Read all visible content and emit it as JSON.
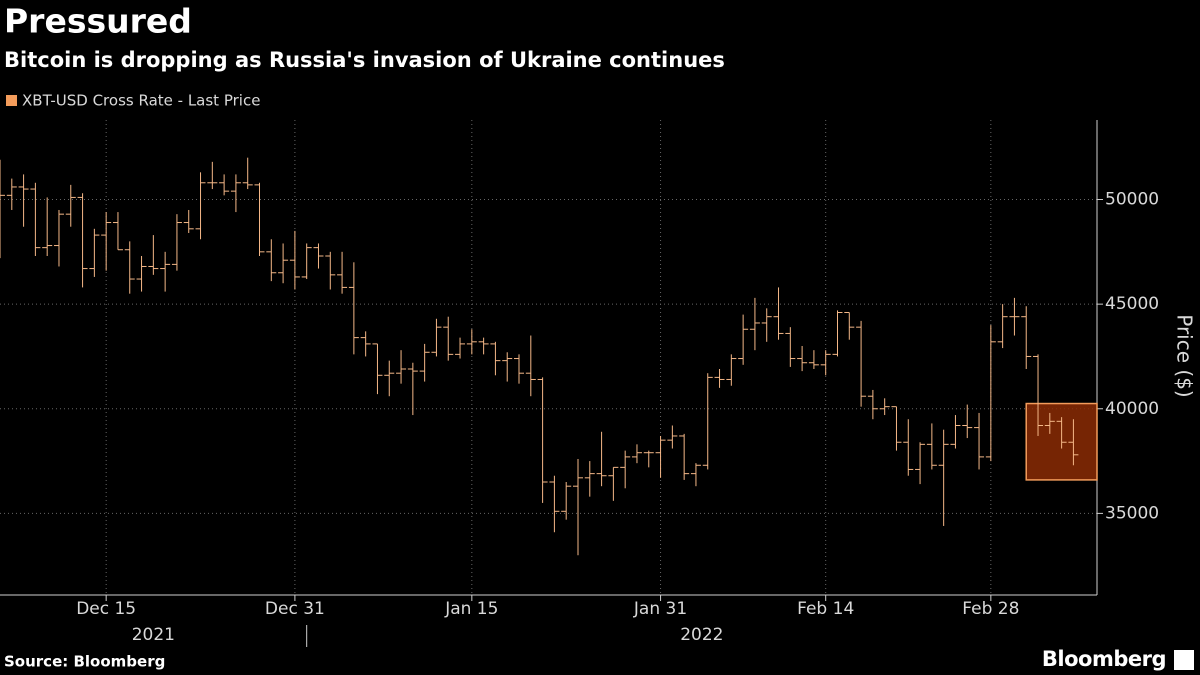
{
  "chart_data": {
    "type": "ohlc",
    "title": "Pressured",
    "subtitle": "Bitcoin is dropping as Russia's invasion of Ukraine continues",
    "y_label": "Price ($)",
    "source": "Source: Bloomberg",
    "brand": "Bloomberg",
    "xlim": [
      "2021-12-06",
      "2022-03-09"
    ],
    "xticks": [
      {
        "value": "2021-12-15",
        "label": "Dec 15"
      },
      {
        "value": "2021-12-31",
        "label": "Dec 31"
      },
      {
        "value": "2022-01-15",
        "label": "Jan 15"
      },
      {
        "value": "2022-01-31",
        "label": "Jan 31"
      },
      {
        "value": "2022-02-14",
        "label": "Feb 14"
      },
      {
        "value": "2022-02-28",
        "label": "Feb 28"
      }
    ],
    "x_year_labels": [
      "2021",
      "2022"
    ],
    "ylim": [
      31100,
      53800
    ],
    "yticks": [
      35000,
      40000,
      45000,
      50000
    ],
    "grid": true,
    "x": [
      "2021-12-06",
      "2021-12-07",
      "2021-12-08",
      "2021-12-09",
      "2021-12-10",
      "2021-12-11",
      "2021-12-12",
      "2021-12-13",
      "2021-12-14",
      "2021-12-15",
      "2021-12-16",
      "2021-12-17",
      "2021-12-18",
      "2021-12-19",
      "2021-12-20",
      "2021-12-21",
      "2021-12-22",
      "2021-12-23",
      "2021-12-24",
      "2021-12-25",
      "2021-12-26",
      "2021-12-27",
      "2021-12-28",
      "2021-12-29",
      "2021-12-30",
      "2021-12-31",
      "2022-01-01",
      "2022-01-02",
      "2022-01-03",
      "2022-01-04",
      "2022-01-05",
      "2022-01-06",
      "2022-01-07",
      "2022-01-08",
      "2022-01-09",
      "2022-01-10",
      "2022-01-11",
      "2022-01-12",
      "2022-01-13",
      "2022-01-14",
      "2022-01-15",
      "2022-01-16",
      "2022-01-17",
      "2022-01-18",
      "2022-01-19",
      "2022-01-20",
      "2022-01-21",
      "2022-01-22",
      "2022-01-23",
      "2022-01-24",
      "2022-01-25",
      "2022-01-26",
      "2022-01-27",
      "2022-01-28",
      "2022-01-29",
      "2022-01-30",
      "2022-01-31",
      "2022-02-01",
      "2022-02-02",
      "2022-02-03",
      "2022-02-04",
      "2022-02-05",
      "2022-02-06",
      "2022-02-07",
      "2022-02-08",
      "2022-02-09",
      "2022-02-10",
      "2022-02-11",
      "2022-02-12",
      "2022-02-13",
      "2022-02-14",
      "2022-02-15",
      "2022-02-16",
      "2022-02-17",
      "2022-02-18",
      "2022-02-19",
      "2022-02-20",
      "2022-02-21",
      "2022-02-22",
      "2022-02-23",
      "2022-02-24",
      "2022-02-25",
      "2022-02-26",
      "2022-02-27",
      "2022-02-28",
      "2022-03-01",
      "2022-03-02",
      "2022-03-03",
      "2022-03-04",
      "2022-03-05",
      "2022-03-06",
      "2022-03-07"
    ],
    "series": [
      {
        "name": "XBT-USD Cross Rate - Last Price",
        "color": "#f5b888",
        "open": [
          49400,
          50200,
          50600,
          50500,
          47700,
          47800,
          49300,
          50100,
          46700,
          48300,
          48900,
          47600,
          46200,
          46800,
          46700,
          46900,
          48900,
          48600,
          50800,
          50800,
          50400,
          50800,
          50700,
          47500,
          46500,
          47100,
          46300,
          47700,
          47300,
          46400,
          45800,
          43400,
          43100,
          41600,
          41700,
          41900,
          41800,
          42700,
          43900,
          42600,
          43100,
          43200,
          43100,
          42300,
          42400,
          41700,
          41400,
          36500,
          35100,
          36300,
          36700,
          36900,
          36800,
          37200,
          37700,
          37900,
          37900,
          38500,
          38700,
          36900,
          37300,
          41500,
          41400,
          42400,
          43800,
          44100,
          44400,
          43600,
          42400,
          42200,
          42100,
          42600,
          44600,
          43900,
          40600,
          40000,
          40100,
          38400,
          37100,
          38300,
          37300,
          38300,
          39200,
          39100,
          37700,
          43200,
          44400,
          44400,
          42500,
          39200,
          39400,
          38400
        ],
        "high": [
          51900,
          51000,
          51200,
          50800,
          50100,
          49500,
          50700,
          50300,
          48600,
          49400,
          49400,
          48000,
          47300,
          48300,
          47500,
          49300,
          49500,
          51300,
          51800,
          51200,
          51200,
          52000,
          50800,
          48100,
          47900,
          48500,
          47900,
          47900,
          47500,
          47500,
          47000,
          43700,
          43100,
          42300,
          42800,
          42200,
          43100,
          44300,
          44400,
          43400,
          43800,
          43400,
          43200,
          42700,
          42600,
          43500,
          41500,
          36800,
          36500,
          37600,
          37500,
          38900,
          37200,
          38000,
          38300,
          38000,
          38700,
          39200,
          38800,
          37400,
          41700,
          41900,
          42600,
          44500,
          45300,
          44800,
          45800,
          43900,
          43000,
          42800,
          42800,
          44700,
          44600,
          44200,
          40900,
          40500,
          40100,
          39500,
          38400,
          39300,
          39000,
          39700,
          40200,
          39800,
          44000,
          45000,
          45300,
          44900,
          42600,
          39800,
          39600,
          39500
        ],
        "low": [
          47200,
          49500,
          48700,
          47300,
          47300,
          46800,
          48700,
          45800,
          46300,
          46600,
          47600,
          45500,
          45600,
          46400,
          45600,
          46600,
          48400,
          48100,
          50500,
          50200,
          49400,
          50500,
          47300,
          46100,
          46000,
          45700,
          46200,
          46700,
          45700,
          45500,
          42600,
          42500,
          40700,
          40600,
          41200,
          39700,
          41300,
          42500,
          42300,
          42400,
          42600,
          42600,
          41600,
          41300,
          41200,
          40600,
          35500,
          34100,
          34700,
          33000,
          35800,
          36300,
          35600,
          36200,
          37400,
          37200,
          36700,
          38100,
          36600,
          36300,
          37100,
          41000,
          41100,
          42100,
          42800,
          43200,
          43300,
          42000,
          41800,
          41900,
          41600,
          42500,
          43300,
          40100,
          39500,
          39700,
          38000,
          36800,
          36400,
          37100,
          34400,
          38100,
          38600,
          37100,
          37500,
          42900,
          43500,
          41900,
          38700,
          38800,
          38100,
          37300
        ],
        "close": [
          50200,
          50600,
          50500,
          47700,
          47800,
          49300,
          50100,
          46700,
          48300,
          48900,
          47600,
          46200,
          46800,
          46700,
          46900,
          48900,
          48600,
          50800,
          50800,
          50400,
          50800,
          50700,
          47500,
          46500,
          47100,
          46300,
          47700,
          47300,
          46400,
          45800,
          43400,
          43100,
          41600,
          41700,
          41900,
          41800,
          42700,
          43900,
          42600,
          43100,
          43200,
          43100,
          42300,
          42400,
          41700,
          41400,
          36500,
          35100,
          36300,
          36700,
          36900,
          36800,
          37200,
          37700,
          37900,
          37900,
          38500,
          38700,
          36900,
          37300,
          41500,
          41400,
          42400,
          43800,
          44100,
          44400,
          43600,
          42400,
          42200,
          42100,
          42600,
          44600,
          43900,
          40600,
          40000,
          40100,
          38400,
          37100,
          38300,
          37300,
          38300,
          39200,
          39100,
          37700,
          43200,
          44400,
          44400,
          42500,
          39200,
          39400,
          38400,
          37800
        ]
      }
    ],
    "legend_square_color": "#f39c5b",
    "highlight": {
      "x": [
        "2022-03-03",
        "2022-03-09"
      ],
      "y": [
        36600,
        40250
      ]
    }
  }
}
